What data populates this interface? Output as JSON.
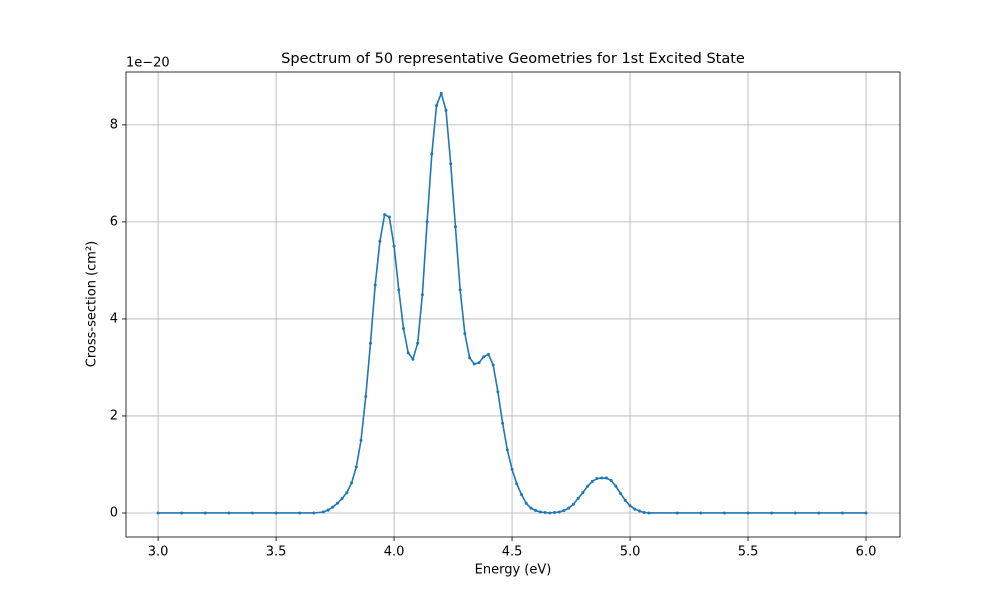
{
  "chart_data": {
    "type": "line",
    "title": "Spectrum of 50 representative Geometries for 1st Excited State",
    "x_label": "Energy (eV)",
    "y_label": "Cross-section (cm²)",
    "y_offset_label": "1e−20",
    "x": [
      3.0,
      3.1,
      3.2,
      3.3,
      3.4,
      3.5,
      3.6,
      3.66,
      3.7,
      3.72,
      3.74,
      3.76,
      3.78,
      3.8,
      3.82,
      3.84,
      3.86,
      3.88,
      3.9,
      3.92,
      3.94,
      3.96,
      3.98,
      4.0,
      4.02,
      4.04,
      4.06,
      4.08,
      4.1,
      4.12,
      4.14,
      4.16,
      4.18,
      4.2,
      4.22,
      4.24,
      4.26,
      4.28,
      4.3,
      4.32,
      4.34,
      4.36,
      4.38,
      4.4,
      4.42,
      4.44,
      4.46,
      4.48,
      4.5,
      4.52,
      4.54,
      4.56,
      4.58,
      4.6,
      4.62,
      4.64,
      4.66,
      4.68,
      4.7,
      4.72,
      4.74,
      4.76,
      4.78,
      4.8,
      4.82,
      4.84,
      4.86,
      4.88,
      4.9,
      4.92,
      4.94,
      4.96,
      4.98,
      5.0,
      5.02,
      5.04,
      5.06,
      5.08,
      5.2,
      5.3,
      5.4,
      5.5,
      5.6,
      5.7,
      5.8,
      5.9,
      6.0
    ],
    "series": [
      {
        "color": "#1f77b4",
        "values": [
          0,
          0,
          0,
          0,
          0,
          0,
          0,
          0,
          0.02,
          0.06,
          0.12,
          0.2,
          0.3,
          0.42,
          0.62,
          0.95,
          1.5,
          2.4,
          3.5,
          4.7,
          5.6,
          6.15,
          6.1,
          5.5,
          4.6,
          3.8,
          3.3,
          3.17,
          3.5,
          4.5,
          6.0,
          7.4,
          8.4,
          8.65,
          8.3,
          7.2,
          5.9,
          4.6,
          3.7,
          3.2,
          3.07,
          3.1,
          3.22,
          3.27,
          3.05,
          2.5,
          1.85,
          1.3,
          0.9,
          0.6,
          0.38,
          0.2,
          0.1,
          0.05,
          0.02,
          0.01,
          0,
          0.01,
          0.02,
          0.05,
          0.1,
          0.18,
          0.3,
          0.42,
          0.55,
          0.65,
          0.71,
          0.72,
          0.72,
          0.67,
          0.55,
          0.4,
          0.26,
          0.15,
          0.08,
          0.04,
          0.01,
          0,
          0,
          0,
          0,
          0,
          0,
          0,
          0,
          0,
          0
        ]
      }
    ],
    "xlim": [
      2.864,
      6.144
    ],
    "ylim": [
      -0.495,
      9.09
    ],
    "xticks": [
      {
        "value": 3,
        "label": "3.0"
      },
      3.5,
      {
        "value": 4,
        "label": "4.0"
      },
      4.5,
      {
        "value": 5,
        "label": "5.0"
      },
      5.5,
      {
        "value": 6,
        "label": "6.0"
      }
    ],
    "yticks": [
      0,
      2,
      4,
      6,
      8
    ],
    "grid": true
  }
}
